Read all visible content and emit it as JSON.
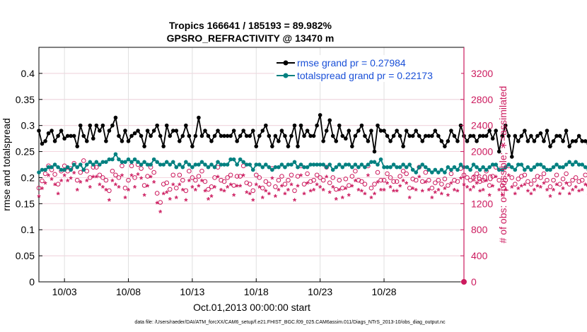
{
  "chart_data": {
    "type": "line",
    "title_line1": "Tropics 166641 / 185193 = 89.982%",
    "title_line2": "GPSRO_REFRACTIVITY @ 13470 m",
    "ylabel_left": "rmse and totalspread",
    "ylabel_right": "# of obs: o=possible; ∗=assimilated",
    "xlabel": "Oct.01,2013 00:00:00 start",
    "footer": "data file: /Users/raeder/DAI/ATM_forcXX/CAM6_setup/f.e21.FHIST_BGC.f09_025.CAM6assim.011/Diags_NTrS_2013-10/obs_diag_output.nc",
    "x_range": [
      1,
      34.25
    ],
    "x_ticks": [
      {
        "value": 3,
        "label": "10/03"
      },
      {
        "value": 8,
        "label": "10/08"
      },
      {
        "value": 13,
        "label": "10/13"
      },
      {
        "value": 18,
        "label": "10/18"
      },
      {
        "value": 23,
        "label": "10/23"
      },
      {
        "value": 28,
        "label": "10/28"
      }
    ],
    "y_left_range": [
      0,
      0.45
    ],
    "y_left_ticks": [
      "0",
      "0.05",
      "0.1",
      "0.15",
      "0.2",
      "0.25",
      "0.3",
      "0.35",
      "0.4"
    ],
    "y_right_range": [
      0,
      3600
    ],
    "y_right_ticks": [
      "0",
      "400",
      "800",
      "1200",
      "1600",
      "2000",
      "2400",
      "2800",
      "3200"
    ],
    "legend": [
      {
        "label": "rmse grand pr = 0.27984",
        "color": "#000000"
      },
      {
        "label": "totalspread grand pr = 0.22173",
        "color": "#008080"
      }
    ],
    "colors": {
      "rmse": "#000000",
      "spread": "#008080",
      "obs": "#cc1a5e",
      "axis_right": "#cc1a5e",
      "legend_text": "#1a50d8",
      "grid": "#e0e0e0"
    },
    "x_step": 0.25,
    "series": [
      {
        "name": "rmse",
        "values": [
          0.29,
          0.265,
          0.27,
          0.285,
          0.29,
          0.27,
          0.28,
          0.29,
          0.275,
          0.28,
          0.28,
          0.28,
          0.26,
          0.3,
          0.28,
          0.27,
          0.3,
          0.275,
          0.3,
          0.29,
          0.3,
          0.27,
          0.29,
          0.3,
          0.315,
          0.28,
          0.27,
          0.29,
          0.27,
          0.28,
          0.285,
          0.29,
          0.28,
          0.26,
          0.29,
          0.28,
          0.29,
          0.3,
          0.28,
          0.26,
          0.3,
          0.28,
          0.29,
          0.29,
          0.27,
          0.28,
          0.3,
          0.28,
          0.26,
          0.28,
          0.315,
          0.28,
          0.29,
          0.28,
          0.27,
          0.28,
          0.29,
          0.28,
          0.28,
          0.28,
          0.28,
          0.29,
          0.27,
          0.28,
          0.29,
          0.28,
          0.28,
          0.29,
          0.26,
          0.28,
          0.29,
          0.3,
          0.28,
          0.26,
          0.28,
          0.27,
          0.29,
          0.28,
          0.26,
          0.28,
          0.3,
          0.26,
          0.3,
          0.28,
          0.29,
          0.28,
          0.28,
          0.3,
          0.32,
          0.27,
          0.29,
          0.31,
          0.28,
          0.27,
          0.3,
          0.28,
          0.275,
          0.29,
          0.26,
          0.28,
          0.29,
          0.3,
          0.28,
          0.27,
          0.29,
          0.25,
          0.3,
          0.29,
          0.29,
          0.28,
          0.27,
          0.28,
          0.29,
          0.28,
          0.26,
          0.29,
          0.28,
          0.28,
          0.29,
          0.28,
          0.27,
          0.28,
          0.28,
          0.28,
          0.29,
          0.28,
          0.27,
          0.26,
          0.27,
          0.29,
          0.28,
          0.27,
          0.3,
          0.28,
          0.27,
          0.28,
          0.28,
          0.27,
          0.28,
          0.28,
          0.28,
          0.29,
          0.275,
          0.29,
          0.25,
          0.28,
          0.3,
          0.28,
          0.24,
          0.28,
          0.27,
          0.28,
          0.29,
          0.27,
          0.28,
          0.27,
          0.28,
          0.285,
          0.27,
          0.29,
          0.26,
          0.27,
          0.28,
          0.28,
          0.27,
          0.29,
          0.26,
          0.27,
          0.27,
          0.28,
          0.27,
          0.27,
          0.265,
          0.27,
          0.27,
          0.265,
          0.265,
          0.265,
          0.265,
          0.28,
          0.28,
          0.275,
          0.28,
          0.27,
          0.275,
          0.28,
          0.29
        ]
      },
      {
        "name": "totalspread",
        "values": [
          0.21,
          0.215,
          0.215,
          0.22,
          0.22,
          0.225,
          0.22,
          0.215,
          0.215,
          0.22,
          0.215,
          0.225,
          0.22,
          0.225,
          0.215,
          0.225,
          0.23,
          0.225,
          0.23,
          0.225,
          0.23,
          0.23,
          0.235,
          0.235,
          0.245,
          0.235,
          0.23,
          0.23,
          0.235,
          0.23,
          0.235,
          0.23,
          0.225,
          0.23,
          0.225,
          0.225,
          0.235,
          0.23,
          0.225,
          0.225,
          0.23,
          0.225,
          0.23,
          0.22,
          0.225,
          0.22,
          0.23,
          0.225,
          0.22,
          0.225,
          0.225,
          0.23,
          0.225,
          0.22,
          0.225,
          0.22,
          0.23,
          0.225,
          0.225,
          0.225,
          0.235,
          0.235,
          0.225,
          0.235,
          0.23,
          0.225,
          0.225,
          0.215,
          0.225,
          0.225,
          0.22,
          0.225,
          0.22,
          0.215,
          0.22,
          0.22,
          0.225,
          0.22,
          0.225,
          0.225,
          0.23,
          0.22,
          0.225,
          0.22,
          0.22,
          0.225,
          0.225,
          0.225,
          0.225,
          0.225,
          0.22,
          0.225,
          0.215,
          0.22,
          0.225,
          0.22,
          0.225,
          0.225,
          0.22,
          0.225,
          0.22,
          0.225,
          0.22,
          0.225,
          0.23,
          0.23,
          0.225,
          0.235,
          0.22,
          0.22,
          0.22,
          0.225,
          0.22,
          0.22,
          0.225,
          0.22,
          0.225,
          0.215,
          0.21,
          0.22,
          0.225,
          0.22,
          0.215,
          0.21,
          0.215,
          0.21,
          0.215,
          0.21,
          0.22,
          0.215,
          0.22,
          0.215,
          0.225,
          0.22,
          0.22,
          0.215,
          0.225,
          0.22,
          0.215,
          0.22,
          0.215,
          0.22,
          0.225,
          0.225,
          0.215,
          0.215,
          0.22,
          0.225,
          0.22,
          0.215,
          0.225,
          0.225,
          0.215,
          0.22,
          0.215,
          0.22,
          0.225,
          0.225,
          0.22,
          0.215,
          0.215,
          0.22,
          0.225,
          0.22,
          0.22,
          0.225,
          0.23,
          0.225,
          0.23,
          0.225,
          0.225,
          0.22,
          0.215,
          0.21,
          0.22,
          0.215,
          0.215,
          0.21,
          0.215,
          0.215,
          0.21,
          0.21,
          0.21,
          0.215,
          0.215,
          0.21,
          0.215,
          0.21,
          0.215
        ]
      },
      {
        "name": "possible_obs",
        "values": [
          1440,
          1550,
          1660,
          1780,
          1720,
          1650,
          1500,
          1700,
          1780,
          1700,
          1740,
          1820,
          1560,
          1680,
          1860,
          1700,
          1600,
          1760,
          1760,
          1640,
          1600,
          1560,
          1400,
          1700,
          1640,
          1600,
          1780,
          1440,
          1560,
          1780,
          1600,
          1800,
          1740,
          1480,
          1620,
          1760,
          1680,
          1360,
          1220,
          1500,
          1520,
          1420,
          1640,
          1440,
          1640,
          1560,
          1400,
          1700,
          1600,
          1560,
          1620,
          1700,
          1540,
          1420,
          1460,
          1600,
          1760,
          1560,
          1540,
          1600,
          1640,
          1480,
          1620,
          1620,
          1780,
          1520,
          1500,
          1400,
          1640,
          1600,
          1440,
          1540,
          1500,
          1740,
          1460,
          1560,
          1620,
          1500,
          1560,
          1640,
          1400,
          1620,
          1780,
          1500,
          1660,
          1540,
          1560,
          1640,
          1600,
          1560,
          1760,
          1520,
          1600,
          1420,
          1560,
          1440,
          1580,
          1480,
          1620,
          1700,
          1560,
          1540,
          1500,
          1780,
          1440,
          1500,
          1680,
          1560,
          1560,
          1660,
          1600,
          1540,
          1540,
          1620,
          1700,
          1660,
          1440,
          1580,
          1560,
          1760,
          1540,
          1680,
          1560,
          1440,
          1520,
          1560,
          1500,
          1580,
          1480,
          1660,
          1560,
          1540,
          1740,
          1640,
          1600,
          1560,
          1600,
          1660,
          1540,
          1560,
          1700,
          1480,
          1620,
          1760,
          1560,
          1480,
          1560,
          1780,
          1600,
          1500,
          1580,
          1620,
          1640,
          1540,
          1500,
          1560,
          1620,
          1600,
          1660,
          1560,
          1460,
          1560,
          1640,
          1500,
          1580,
          1660,
          1500,
          1560,
          1600,
          1540,
          1560,
          1640,
          1480,
          1600,
          1560,
          1620,
          1440,
          1540,
          1660,
          1560,
          1500,
          1580,
          1620,
          1560,
          1500,
          1600,
          1540,
          1600,
          1560
        ]
      },
      {
        "name": "assimilated_obs",
        "values": [
          1300,
          1420,
          1500,
          1620,
          1560,
          1480,
          1340,
          1540,
          1620,
          1540,
          1580,
          1660,
          1400,
          1520,
          1700,
          1540,
          1440,
          1600,
          1600,
          1480,
          1440,
          1400,
          1240,
          1540,
          1480,
          1440,
          1620,
          1280,
          1400,
          1620,
          1440,
          1640,
          1580,
          1320,
          1460,
          1600,
          1520,
          1200,
          1060,
          1340,
          1360,
          1260,
          1480,
          1280,
          1480,
          1400,
          1240,
          1540,
          1440,
          1400,
          1460,
          1540,
          1380,
          1260,
          1300,
          1440,
          1600,
          1400,
          1380,
          1440,
          1480,
          1320,
          1460,
          1460,
          1620,
          1360,
          1340,
          1240,
          1480,
          1440,
          1280,
          1380,
          1340,
          1580,
          1300,
          1400,
          1460,
          1340,
          1400,
          1480,
          1240,
          1460,
          1620,
          1340,
          1500,
          1380,
          1400,
          1480,
          1440,
          1400,
          1600,
          1360,
          1440,
          1260,
          1400,
          1280,
          1420,
          1320,
          1460,
          1540,
          1400,
          1380,
          1340,
          1620,
          1280,
          1340,
          1520,
          1400,
          1400,
          1500,
          1440,
          1380,
          1380,
          1460,
          1540,
          1500,
          1280,
          1420,
          1400,
          1600,
          1380,
          1520,
          1400,
          1280,
          1360,
          1400,
          1340,
          1420,
          1320,
          1500,
          1400,
          1380,
          1580,
          1480,
          1440,
          1400,
          1440,
          1500,
          1380,
          1400,
          1540,
          1320,
          1460,
          1600,
          1400,
          1320,
          1400,
          1620,
          1440,
          1340,
          1420,
          1460,
          1480,
          1380,
          1340,
          1400,
          1460,
          1440,
          1500,
          1400,
          1300,
          1400,
          1480,
          1340,
          1420,
          1500,
          1340,
          1400,
          1440,
          1380,
          1400,
          1480,
          1320,
          1440,
          1400,
          1460,
          1280,
          1380,
          1500,
          1400,
          1340,
          1420,
          1460,
          1400,
          1340,
          1440,
          1380,
          1440,
          1400
        ]
      }
    ]
  }
}
